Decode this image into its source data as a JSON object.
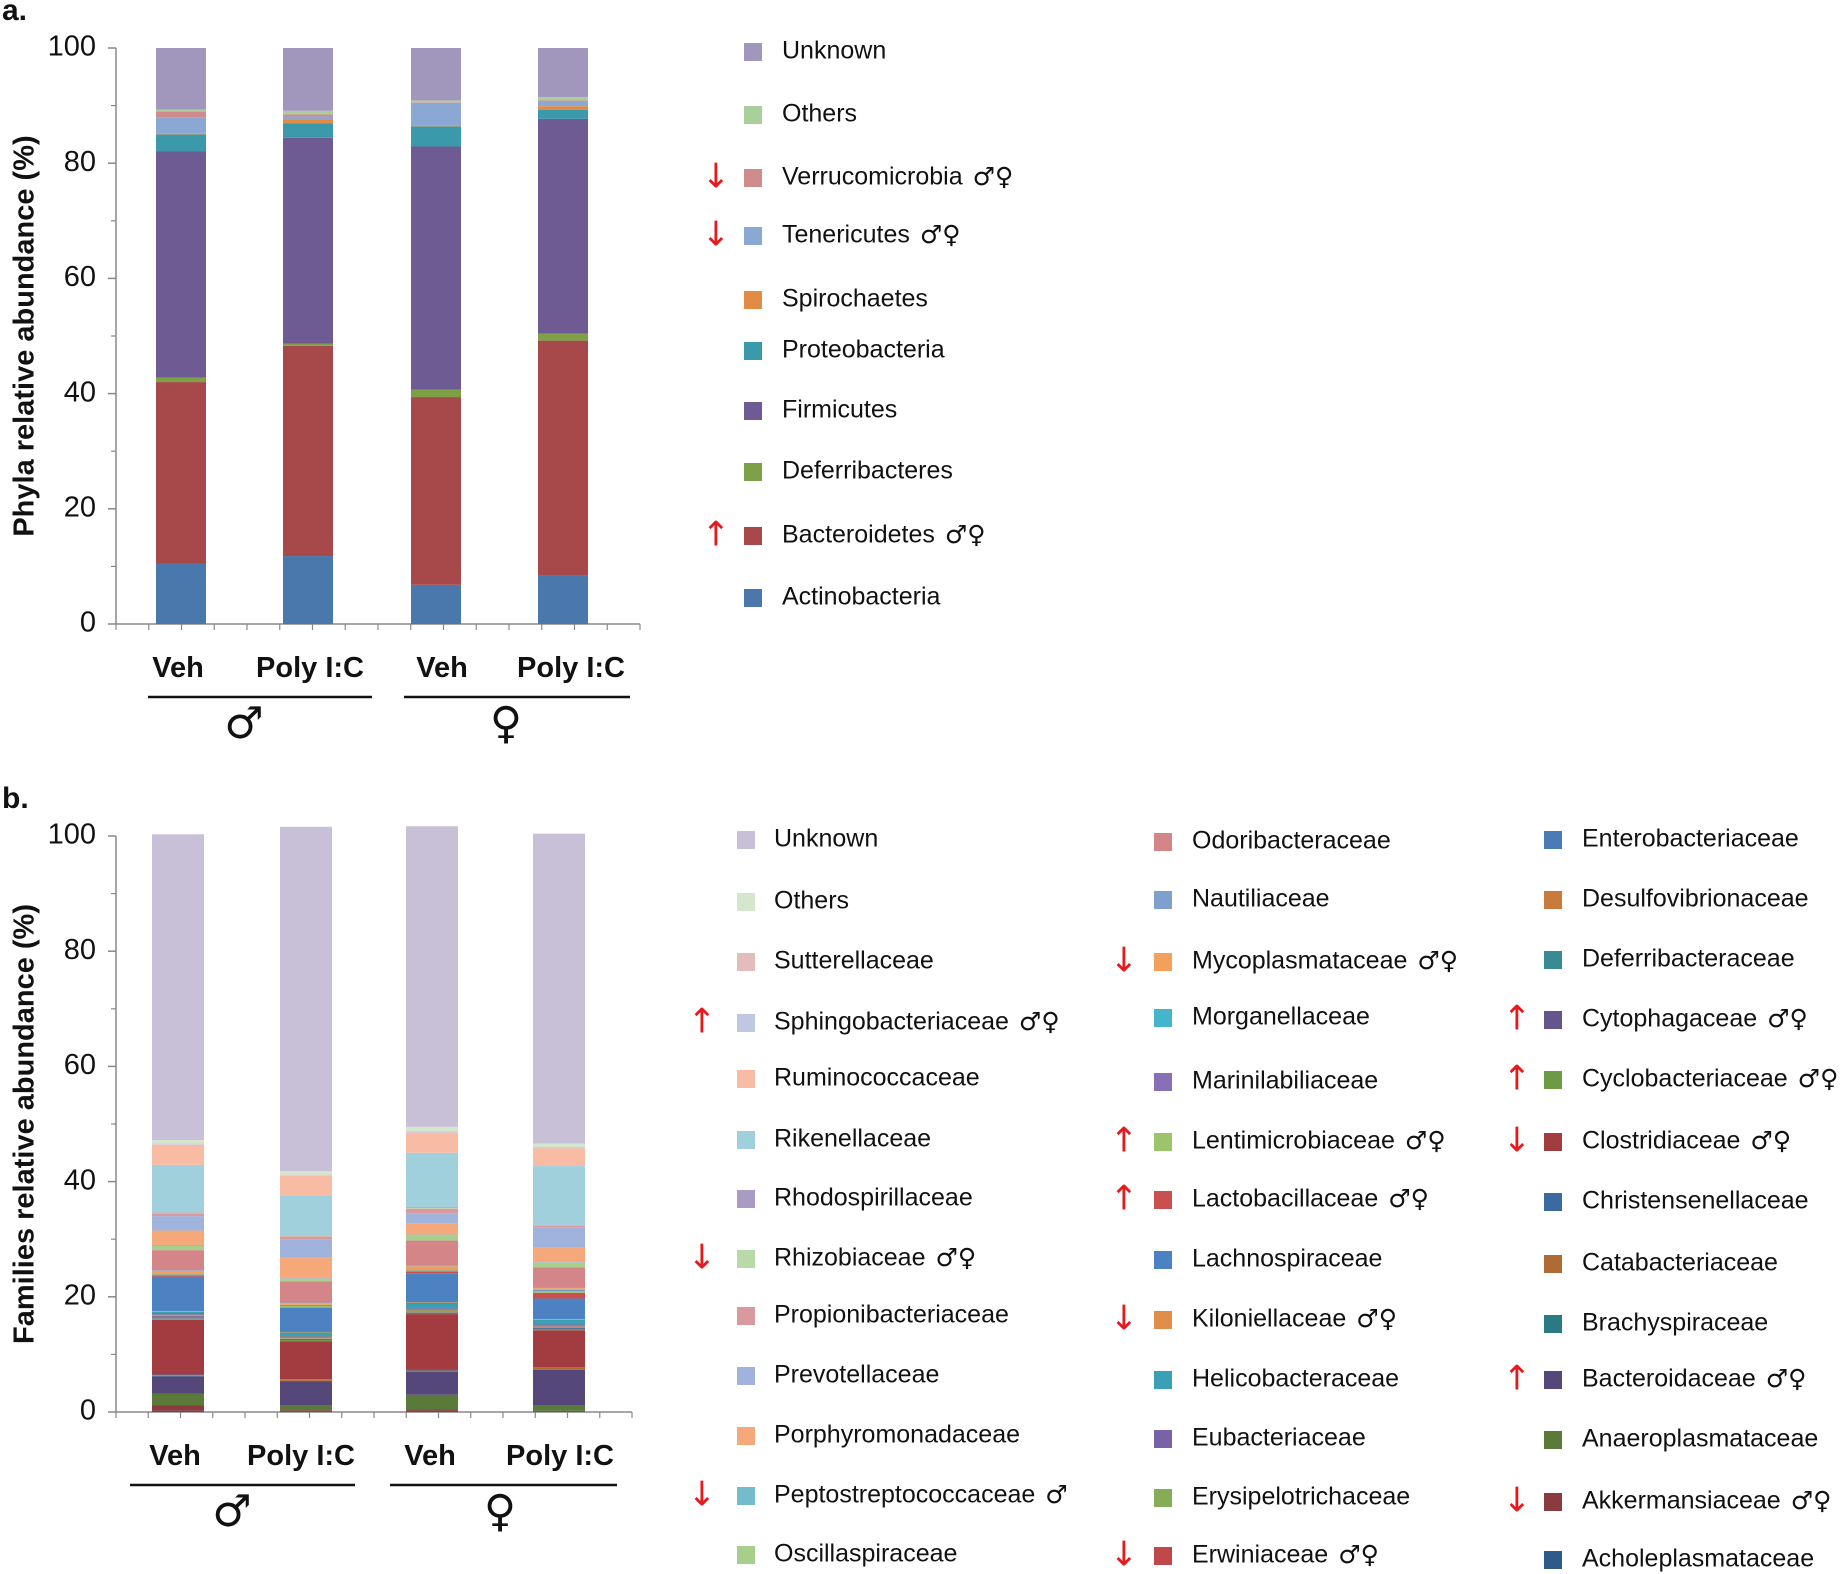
{
  "chart_data": [
    {
      "type": "bar",
      "stacked": true,
      "panel_label": "a.",
      "ylabel": "Phyla relative abundance (%)",
      "ylim": [
        0,
        100
      ],
      "yticks": [
        0,
        20,
        40,
        60,
        80,
        100
      ],
      "categories": [
        "Veh",
        "Poly  I:C",
        "Veh",
        "Poly  I:C"
      ],
      "groups": [
        {
          "symbol": "♂",
          "categories": [
            0,
            1
          ]
        },
        {
          "symbol": "♀",
          "categories": [
            2,
            3
          ]
        }
      ],
      "series": [
        {
          "name": "Actinobacteria",
          "color": "#4a78ad",
          "values": [
            10.5,
            11.8,
            6.8,
            8.5
          ],
          "arrow": "",
          "sex": ""
        },
        {
          "name": "Bacteroidetes",
          "color": "#a7484a",
          "values": [
            31.5,
            36.5,
            32.6,
            40.7
          ],
          "arrow": "↑",
          "sex": "♂♀"
        },
        {
          "name": "Deferribacteres",
          "color": "#7ea148",
          "values": [
            0.8,
            0.4,
            1.3,
            1.2
          ],
          "arrow": "",
          "sex": ""
        },
        {
          "name": "Firmicutes",
          "color": "#6e5b94",
          "values": [
            39.3,
            35.7,
            42.2,
            37.3
          ],
          "arrow": "",
          "sex": ""
        },
        {
          "name": "Proteobacteria",
          "color": "#3a9aab",
          "values": [
            2.9,
            2.5,
            3.5,
            1.6
          ],
          "arrow": "",
          "sex": ""
        },
        {
          "name": "Spirochaetes",
          "color": "#e28b44",
          "values": [
            0.1,
            0.6,
            0.2,
            0.6
          ],
          "arrow": "",
          "sex": ""
        },
        {
          "name": "Tenericutes",
          "color": "#8aa8d3",
          "values": [
            2.8,
            0.6,
            3.9,
            0.8
          ],
          "arrow": "↓",
          "sex": "♂♀"
        },
        {
          "name": "Verrucomicrobia",
          "color": "#d08b8d",
          "values": [
            1.1,
            0.4,
            0.1,
            0.2
          ],
          "arrow": "↓",
          "sex": "♂♀"
        },
        {
          "name": "Others",
          "color": "#a9d09a",
          "values": [
            0.3,
            0.6,
            0.3,
            0.6
          ],
          "arrow": "",
          "sex": ""
        },
        {
          "name": "Unknown",
          "color": "#a197bd",
          "values": [
            10.7,
            10.9,
            9.1,
            8.5
          ],
          "arrow": "",
          "sex": ""
        }
      ]
    },
    {
      "type": "bar",
      "stacked": true,
      "panel_label": "b.",
      "ylabel": "Families  relative abundance (%)",
      "ylim": [
        0,
        100
      ],
      "yticks": [
        0,
        20,
        40,
        60,
        80,
        100
      ],
      "categories": [
        "Veh",
        "Poly  I:C",
        "Veh",
        "Poly  I:C"
      ],
      "groups": [
        {
          "symbol": "♂",
          "categories": [
            0,
            1
          ]
        },
        {
          "symbol": "♀",
          "categories": [
            2,
            3
          ]
        }
      ],
      "series": [
        {
          "name": "Acholeplasmataceae",
          "color": "#2f5b8a",
          "values": [
            0.2,
            0.1,
            0.2,
            0.1
          ],
          "arrow": "",
          "sex": ""
        },
        {
          "name": "Akkermansiaceae",
          "color": "#8b3a3e",
          "values": [
            1.0,
            0.2,
            0.3,
            0.1
          ],
          "arrow": "↓",
          "sex": "♂♀"
        },
        {
          "name": "Anaeroplasmataceae",
          "color": "#5a7a3a",
          "values": [
            2.0,
            0.8,
            2.5,
            0.9
          ],
          "arrow": "",
          "sex": ""
        },
        {
          "name": "Bacteroidaceae",
          "color": "#55477a",
          "values": [
            3.0,
            4.2,
            4.0,
            6.2
          ],
          "arrow": "↑",
          "sex": "♂♀"
        },
        {
          "name": "Brachyspiraceae",
          "color": "#2a7a85",
          "values": [
            0.1,
            0.1,
            0.1,
            0.1
          ],
          "arrow": "",
          "sex": ""
        },
        {
          "name": "Catabacteriaceae",
          "color": "#b06a32",
          "values": [
            0.1,
            0.2,
            0.1,
            0.3
          ],
          "arrow": "",
          "sex": ""
        },
        {
          "name": "Christensenellaceae",
          "color": "#3b6aa0",
          "values": [
            0.1,
            0.1,
            0.1,
            0.1
          ],
          "arrow": "",
          "sex": ""
        },
        {
          "name": "Clostridiaceae",
          "color": "#a23c40",
          "values": [
            9.5,
            6.6,
            9.7,
            6.4
          ],
          "arrow": "↓",
          "sex": "♂♀"
        },
        {
          "name": "Cyclobacteriaceae",
          "color": "#6f9a45",
          "values": [
            0.1,
            0.2,
            0.1,
            0.2
          ],
          "arrow": "↑",
          "sex": "♂♀"
        },
        {
          "name": "Cytophagaceae",
          "color": "#65558f",
          "values": [
            0.1,
            0.1,
            0.1,
            0.1
          ],
          "arrow": "↑",
          "sex": "♂♀"
        },
        {
          "name": "Deferribacteraceae",
          "color": "#3a8a96",
          "values": [
            0.1,
            0.1,
            0.1,
            0.1
          ],
          "arrow": "",
          "sex": ""
        },
        {
          "name": "Desulfovibrionaceae",
          "color": "#c87b3c",
          "values": [
            0.1,
            0.1,
            0.1,
            0.1
          ],
          "arrow": "",
          "sex": ""
        },
        {
          "name": "Enterobacteriaceae",
          "color": "#4a7bb5",
          "values": [
            0.2,
            0.1,
            0.1,
            0.1
          ],
          "arrow": "",
          "sex": ""
        },
        {
          "name": "Erwiniaceae",
          "color": "#c0474a",
          "values": [
            0.1,
            0.1,
            0.1,
            0.1
          ],
          "arrow": "↓",
          "sex": "♂♀"
        },
        {
          "name": "Erysipelotrichaceae",
          "color": "#86ad55",
          "values": [
            0.2,
            0.1,
            0.2,
            0.1
          ],
          "arrow": "",
          "sex": ""
        },
        {
          "name": "Eubacteriaceae",
          "color": "#7a62a8",
          "values": [
            0.2,
            0.2,
            0.2,
            0.2
          ],
          "arrow": "",
          "sex": ""
        },
        {
          "name": "Helicobacteraceae",
          "color": "#3aa0b5",
          "values": [
            0.3,
            0.5,
            1.0,
            0.8
          ],
          "arrow": "",
          "sex": ""
        },
        {
          "name": "Kiloniellaceae",
          "color": "#e18e4a",
          "values": [
            0.1,
            0.1,
            0.1,
            0.1
          ],
          "arrow": "↓",
          "sex": "♂♀"
        },
        {
          "name": "Lachnospiraceae",
          "color": "#4d82c2",
          "values": [
            6.0,
            4.2,
            5.0,
            3.6
          ],
          "arrow": "",
          "sex": ""
        },
        {
          "name": "Lactobacillaceae",
          "color": "#c8504f",
          "values": [
            0.2,
            0.1,
            0.3,
            1.0
          ],
          "arrow": "↑",
          "sex": "♂♀"
        },
        {
          "name": "Lentimicrobiaceae",
          "color": "#9cc46a",
          "values": [
            0.2,
            0.2,
            0.2,
            0.3
          ],
          "arrow": "↑",
          "sex": "♂♀"
        },
        {
          "name": "Marinilabiliaceae",
          "color": "#8770b5",
          "values": [
            0.1,
            0.1,
            0.1,
            0.1
          ],
          "arrow": "",
          "sex": ""
        },
        {
          "name": "Morganellaceae",
          "color": "#45b5cc",
          "values": [
            0.1,
            0.1,
            0.1,
            0.1
          ],
          "arrow": "",
          "sex": ""
        },
        {
          "name": "Mycoplasmataceae",
          "color": "#f2a05c",
          "values": [
            0.4,
            0.3,
            0.5,
            0.3
          ],
          "arrow": "↓",
          "sex": "♂♀"
        },
        {
          "name": "Nautiliaceae",
          "color": "#7f9fcc",
          "values": [
            0.1,
            0.1,
            0.1,
            0.1
          ],
          "arrow": "",
          "sex": ""
        },
        {
          "name": "Odoribacteraceae",
          "color": "#d38587",
          "values": [
            3.5,
            3.7,
            4.4,
            3.5
          ],
          "arrow": "",
          "sex": ""
        },
        {
          "name": "Oscillaspiraceae",
          "color": "#a5cf8a",
          "values": [
            0.8,
            0.4,
            0.9,
            0.8
          ],
          "arrow": "",
          "sex": ""
        },
        {
          "name": "Peptostreptococcaceae",
          "color": "#74bccb",
          "values": [
            0.1,
            0.1,
            0.1,
            0.1
          ],
          "arrow": "↓",
          "sex": "♂"
        },
        {
          "name": "Porphyromonadaceae",
          "color": "#f5a97a",
          "values": [
            2.5,
            3.6,
            2.0,
            2.5
          ],
          "arrow": "",
          "sex": ""
        },
        {
          "name": "Prevotellaceae",
          "color": "#9fb3dc",
          "values": [
            2.5,
            3.2,
            1.7,
            3.5
          ],
          "arrow": "",
          "sex": ""
        },
        {
          "name": "Propionibacteriaceae",
          "color": "#d89a9c",
          "values": [
            0.5,
            0.5,
            0.8,
            0.3
          ],
          "arrow": "",
          "sex": ""
        },
        {
          "name": "Rhizobiaceae",
          "color": "#b8d9a8",
          "values": [
            0.1,
            0.1,
            0.1,
            0.1
          ],
          "arrow": "↓",
          "sex": "♂♀"
        },
        {
          "name": "Rhodospirillaceae",
          "color": "#a99bc4",
          "values": [
            0.1,
            0.1,
            0.1,
            0.1
          ],
          "arrow": "",
          "sex": ""
        },
        {
          "name": "Rikenellaceae",
          "color": "#9fd0dc",
          "values": [
            8.2,
            6.8,
            9.5,
            10.2
          ],
          "arrow": "",
          "sex": ""
        },
        {
          "name": "Ruminococcaceae",
          "color": "#f8bca5",
          "values": [
            3.5,
            3.5,
            3.5,
            3.1
          ],
          "arrow": "",
          "sex": ""
        },
        {
          "name": "Sphingobacteriaceae",
          "color": "#bfc8e0",
          "values": [
            0.1,
            0.1,
            0.1,
            0.1
          ],
          "arrow": "↑",
          "sex": "♂♀"
        },
        {
          "name": "Sutterellaceae",
          "color": "#e3bcbc",
          "values": [
            0.1,
            0.1,
            0.1,
            0.1
          ],
          "arrow": "",
          "sex": ""
        },
        {
          "name": "Others",
          "color": "#d4e6cc",
          "values": [
            0.6,
            0.6,
            0.8,
            0.6
          ],
          "arrow": "",
          "sex": ""
        },
        {
          "name": "Unknown",
          "color": "#c8c0d6",
          "values": [
            53.1,
            59.8,
            52.2,
            53.8
          ],
          "arrow": "",
          "sex": ""
        }
      ]
    }
  ]
}
